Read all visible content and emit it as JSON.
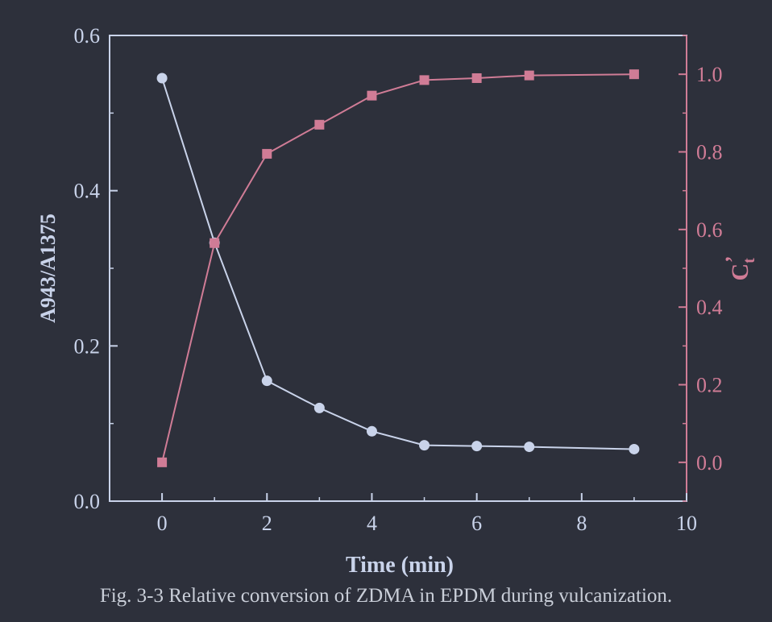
{
  "figure": {
    "caption": "Fig. 3-3 Relative conversion of ZDMA in EPDM during vulcanization."
  },
  "chart_data": {
    "type": "line",
    "xlabel": "Time (min)",
    "ylabel_left": "A943/A1375",
    "ylabel_right_main": "C",
    "ylabel_right_sub": "t",
    "ylabel_right_sup": "’",
    "xlim": [
      -1,
      10
    ],
    "ylim_left": [
      0,
      0.6
    ],
    "ylim_right": [
      -0.1,
      1.1
    ],
    "x_ticks": [
      0,
      2,
      4,
      6,
      8,
      10
    ],
    "y_left_ticks": [
      0.0,
      0.2,
      0.4,
      0.6
    ],
    "y_right_ticks": [
      0.0,
      0.2,
      0.4,
      0.6,
      0.8,
      1.0
    ],
    "grid": false,
    "colors": {
      "background": "#2d303b",
      "left_axis": "#c9d3ea",
      "right_axis": "#d07c96"
    },
    "series": [
      {
        "axis": "left",
        "marker": "circle",
        "color": "#c9d3ea",
        "x": [
          0,
          1,
          2,
          3,
          4,
          5,
          6,
          7,
          9
        ],
        "y": [
          0.545,
          0.333,
          0.155,
          0.12,
          0.09,
          0.072,
          0.071,
          0.07,
          0.067
        ]
      },
      {
        "axis": "right",
        "marker": "square",
        "color": "#d07c96",
        "x": [
          0,
          1,
          2,
          3,
          4,
          5,
          6,
          7,
          9
        ],
        "y": [
          0.0,
          0.565,
          0.795,
          0.87,
          0.945,
          0.985,
          0.99,
          0.997,
          1.0
        ]
      }
    ]
  }
}
